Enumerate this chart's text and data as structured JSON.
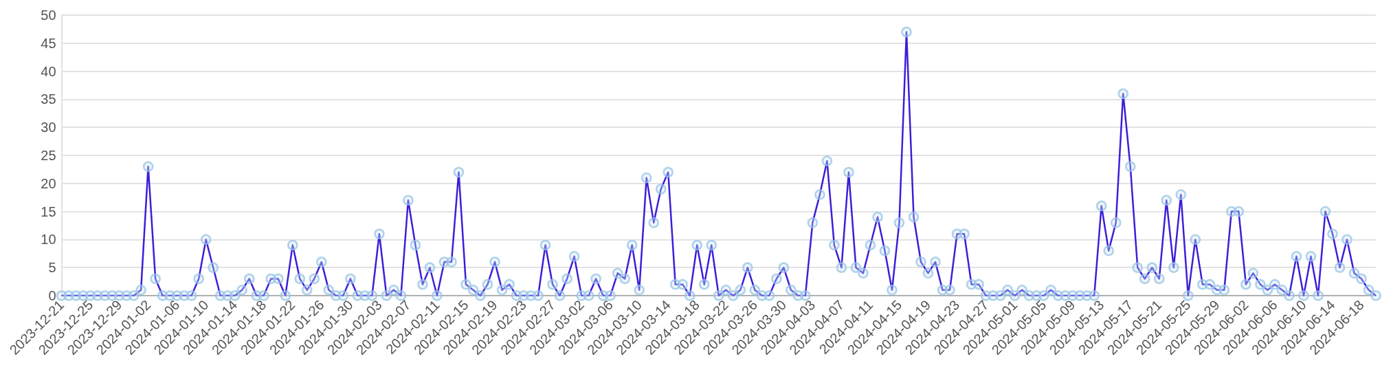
{
  "chart_data": {
    "type": "line",
    "categories": [
      "2023-12-21",
      null,
      null,
      null,
      "2023-12-25",
      null,
      null,
      null,
      "2023-12-29",
      null,
      null,
      null,
      "2024-01-02",
      null,
      null,
      null,
      "2024-01-06",
      null,
      null,
      null,
      "2024-01-10",
      null,
      null,
      null,
      "2024-01-14",
      null,
      null,
      null,
      "2024-01-18",
      null,
      null,
      null,
      "2024-01-22",
      null,
      null,
      null,
      "2024-01-26",
      null,
      null,
      null,
      "2024-01-30",
      null,
      null,
      null,
      "2024-02-03",
      null,
      null,
      null,
      "2024-02-07",
      null,
      null,
      null,
      "2024-02-11",
      null,
      null,
      null,
      "2024-02-15",
      null,
      null,
      null,
      "2024-02-19",
      null,
      null,
      null,
      "2024-02-23",
      null,
      null,
      null,
      "2024-02-27",
      null,
      null,
      null,
      "2024-03-02",
      null,
      null,
      null,
      "2024-03-06",
      null,
      null,
      null,
      "2024-03-10",
      null,
      null,
      null,
      "2024-03-14",
      null,
      null,
      null,
      "2024-03-18",
      null,
      null,
      null,
      "2024-03-22",
      null,
      null,
      null,
      "2024-03-26",
      null,
      null,
      null,
      "2024-03-30",
      null,
      null,
      null,
      "2024-04-03",
      null,
      null,
      null,
      "2024-04-07",
      null,
      null,
      null,
      "2024-04-11",
      null,
      null,
      null,
      "2024-04-15",
      null,
      null,
      null,
      "2024-04-19",
      null,
      null,
      null,
      "2024-04-23",
      null,
      null,
      null,
      "2024-04-27",
      null,
      null,
      null,
      "2024-05-01",
      null,
      null,
      null,
      "2024-05-05",
      null,
      null,
      null,
      "2024-05-09",
      null,
      null,
      null,
      "2024-05-13",
      null,
      null,
      null,
      "2024-05-17",
      null,
      null,
      null,
      "2024-05-21",
      null,
      null,
      null,
      "2024-05-25",
      null,
      null,
      null,
      "2024-05-29",
      null,
      null,
      null,
      "2024-06-02",
      null,
      null,
      null,
      "2024-06-06",
      null,
      null,
      null,
      "2024-06-10",
      null,
      null,
      null,
      "2024-06-14",
      null,
      null,
      null,
      "2024-06-18",
      null,
      null
    ],
    "series": [
      {
        "color": "#3a1fd9",
        "values": [
          0,
          0,
          0,
          0,
          0,
          0,
          0,
          0,
          0,
          0,
          0,
          1,
          23,
          3,
          0,
          0,
          0,
          0,
          0,
          3,
          10,
          5,
          0,
          0,
          0,
          1,
          3,
          0,
          0,
          3,
          3,
          0,
          9,
          3,
          1,
          3,
          6,
          1,
          0,
          0,
          3,
          0,
          0,
          0,
          11,
          0,
          1,
          0,
          17,
          9,
          2,
          5,
          0,
          6,
          6,
          22,
          2,
          1,
          0,
          2,
          6,
          1,
          2,
          0,
          0,
          0,
          0,
          9,
          2,
          0,
          3,
          7,
          0,
          0,
          3,
          0,
          0,
          4,
          3,
          9,
          1,
          21,
          13,
          19,
          22,
          2,
          2,
          0,
          9,
          2,
          9,
          0,
          1,
          0,
          1,
          5,
          1,
          0,
          0,
          3,
          5,
          1,
          0,
          0,
          13,
          18,
          24,
          9,
          5,
          22,
          5,
          4,
          9,
          14,
          8,
          1,
          13,
          47,
          14,
          6,
          4,
          6,
          1,
          1,
          11,
          11,
          2,
          2,
          0,
          0,
          0,
          1,
          0,
          1,
          0,
          0,
          0,
          1,
          0,
          0,
          0,
          0,
          0,
          0,
          16,
          8,
          13,
          36,
          23,
          5,
          3,
          5,
          3,
          17,
          5,
          18,
          0,
          10,
          2,
          2,
          1,
          1,
          15,
          15,
          2,
          4,
          2,
          1,
          2,
          1,
          0,
          7,
          0,
          7,
          0,
          15,
          11,
          5,
          10,
          4,
          3,
          1,
          0
        ]
      }
    ],
    "ylim": [
      0,
      50
    ],
    "yticks": [
      0,
      5,
      10,
      15,
      20,
      25,
      30,
      35,
      40,
      45,
      50
    ],
    "grid": "y",
    "marker": "circle"
  }
}
